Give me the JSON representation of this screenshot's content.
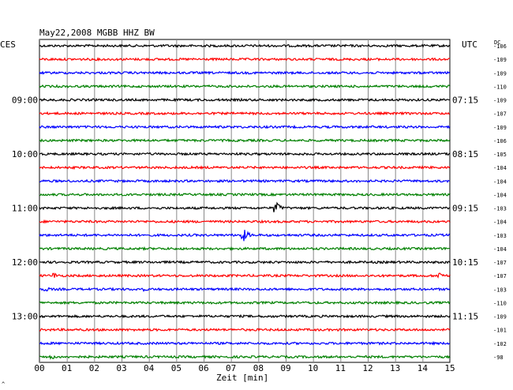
{
  "chart_data": {
    "type": "line",
    "title": "May22,2008  MGBB HHZ BW",
    "left_header": "CES",
    "right_header": "UTC",
    "dc_header": "DC",
    "xlabel": "Zeit [min]",
    "xlim": [
      0,
      15
    ],
    "x_ticks": [
      "00",
      "01",
      "02",
      "03",
      "04",
      "05",
      "06",
      "07",
      "08",
      "09",
      "10",
      "11",
      "12",
      "13",
      "14",
      "15"
    ],
    "grid": true,
    "trace_colors": [
      "#000000",
      "#ff0000",
      "#0000ff",
      "#008000"
    ],
    "left_time_labels": [
      {
        "trace": 4,
        "label": "09:00"
      },
      {
        "trace": 8,
        "label": "10:00"
      },
      {
        "trace": 12,
        "label": "11:00"
      },
      {
        "trace": 16,
        "label": "12:00"
      },
      {
        "trace": 20,
        "label": "13:00"
      }
    ],
    "right_time_labels": [
      {
        "trace": 0,
        "label": "UTC"
      },
      {
        "trace": 4,
        "label": "07:15"
      },
      {
        "trace": 8,
        "label": "08:15"
      },
      {
        "trace": 12,
        "label": "09:15"
      },
      {
        "trace": 16,
        "label": "10:15"
      },
      {
        "trace": 20,
        "label": "11:15"
      }
    ],
    "dc_offsets": [
      "-106",
      "-109",
      "-109",
      "-110",
      "-109",
      "-107",
      "-109",
      "-106",
      "-105",
      "-104",
      "-104",
      "-104",
      "-103",
      "-104",
      "-103",
      "-104",
      "-107",
      "-107",
      "-103",
      "-110",
      "-109",
      "-101",
      "-102",
      "-98"
    ],
    "events": [
      {
        "trace": 12,
        "minute": 8.6,
        "amplitude": 10
      },
      {
        "trace": 14,
        "minute": 7.4,
        "amplitude": 11
      },
      {
        "trace": 17,
        "minute": 0.5,
        "amplitude": 5
      },
      {
        "trace": 17,
        "minute": 14.6,
        "amplitude": 6
      },
      {
        "trace": 18,
        "minute": 0.2,
        "amplitude": 4
      },
      {
        "trace": 18,
        "minute": 3.7,
        "amplitude": 4
      },
      {
        "trace": 23,
        "minute": 0.4,
        "amplitude": 4
      }
    ],
    "footer_mark": "^"
  }
}
